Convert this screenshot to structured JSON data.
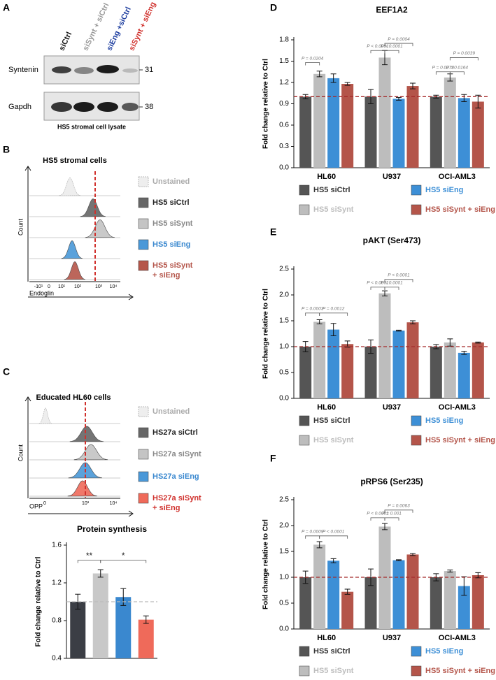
{
  "panel_labels": [
    "A",
    "B",
    "C",
    "D",
    "E",
    "F"
  ],
  "panel_a": {
    "lanes": [
      "siCtrl",
      "siSynt + siCtrl",
      "siEng +siCtrl",
      "siSynt + siEng"
    ],
    "blots": [
      {
        "label": "Syntenin",
        "size": "31"
      },
      {
        "label": "Gapdh",
        "size": "38"
      }
    ],
    "caption": "HS5 stromal cell lysate"
  },
  "panel_b": {
    "title": "HS5 stromal cells",
    "legend": [
      [
        "Unstained"
      ],
      [
        "HS5 siCtrl"
      ],
      [
        "HS5 siSynt"
      ],
      [
        "HS5 siEng"
      ],
      [
        "HS5 siSynt",
        "+ siEng"
      ]
    ],
    "ylabel": "Count",
    "xlabel": "Endoglin",
    "xticks": [
      "-10¹",
      "0",
      "10¹",
      "10²",
      "10³",
      "10⁴"
    ]
  },
  "panel_c": {
    "title": "Educated HL60 cells",
    "legend": [
      [
        "Unstained"
      ],
      [
        "HS27a siCtrl"
      ],
      [
        "HS27a siSynt"
      ],
      [
        "HS27a siEng"
      ],
      [
        "HS27a siSynt",
        "+ siEng"
      ]
    ],
    "ylabel": "Count",
    "xlabel": "OPP",
    "xticks": [
      "0",
      "10³",
      "10⁴"
    ]
  },
  "chart_data": [
    {
      "type": "bar",
      "title": "Protein synthesis",
      "ylabel": "Fold change relative to Ctrl",
      "ylim": [
        0.4,
        1.6
      ],
      "yticks": [
        0.4,
        0.8,
        1.2,
        1.6
      ],
      "values": [
        1.0,
        1.3,
        1.05,
        0.81
      ],
      "errors": [
        0.08,
        0.04,
        0.09,
        0.04
      ],
      "colors": [
        "#3b3e45",
        "#c8c8c8",
        "#3a88cf",
        "#ef6a5a"
      ],
      "refline": 1.0,
      "refline_color": "#bbbbbb",
      "annotations": [
        "**",
        "*"
      ]
    },
    {
      "type": "bar",
      "title": "EEF1A2",
      "ylabel": "Fold change relative to Ctrl",
      "ylim": [
        0,
        1.8
      ],
      "yticks": [
        {
          "value": 0,
          "label": "0.0"
        },
        0.3,
        0.6,
        0.9,
        1.2,
        1.5,
        1.8
      ],
      "categories": [
        "HL60",
        "U937",
        "OCI-AML3"
      ],
      "series": [
        {
          "name": "HS5 siCtrl",
          "color": "#555555",
          "values": [
            1.0,
            1.0,
            1.0
          ],
          "errors": [
            0.03,
            0.1,
            0.02
          ]
        },
        {
          "name": "HS5 siSynt",
          "color": "#bdbdbd",
          "values": [
            1.32,
            1.55,
            1.27
          ],
          "errors": [
            0.04,
            0.1,
            0.05
          ]
        },
        {
          "name": "HS5 siEng",
          "color": "#3d8fd6",
          "values": [
            1.26,
            0.97,
            0.98
          ],
          "errors": [
            0.06,
            0.02,
            0.05
          ]
        },
        {
          "name": "HS5 siSynt + siEng",
          "color": "#b4554a",
          "values": [
            1.18,
            1.15,
            0.93
          ],
          "errors": [
            0.02,
            0.04,
            0.09
          ]
        }
      ],
      "refline": 1.0,
      "refline_color": "#a52a2a",
      "annotations": [
        "P = 0.0204",
        "P < 0.0001",
        "P < 0.0001",
        "P = 0.0004",
        "P = 0.0278",
        "P = 0.0164",
        "P = 0.0039"
      ]
    },
    {
      "type": "bar",
      "title": "pAKT (Ser473)",
      "ylabel": "Fold change relative to Ctrl",
      "ylim": [
        0,
        2.5
      ],
      "yticks": [
        {
          "value": 0,
          "label": "0.0"
        },
        0.5,
        {
          "value": 1,
          "label": "1.0"
        },
        1.5,
        {
          "value": 2,
          "label": "2.0"
        },
        2.5
      ],
      "categories": [
        "HL60",
        "U937",
        "OCI-AML3"
      ],
      "series": [
        {
          "name": "HS5 siCtrl",
          "color": "#555555",
          "values": [
            1.0,
            1.0,
            1.0
          ],
          "errors": [
            0.1,
            0.13,
            0.04
          ]
        },
        {
          "name": "HS5 siSynt",
          "color": "#bdbdbd",
          "values": [
            1.48,
            2.03,
            1.08
          ],
          "errors": [
            0.04,
            0.05,
            0.07
          ]
        },
        {
          "name": "HS5 siEng",
          "color": "#3d8fd6",
          "values": [
            1.33,
            1.31,
            0.88
          ],
          "errors": [
            0.12,
            0.01,
            0.03
          ]
        },
        {
          "name": "HS5 siSynt + siEng",
          "color": "#b4554a",
          "values": [
            1.05,
            1.47,
            1.08
          ],
          "errors": [
            0.06,
            0.03,
            0.01
          ]
        }
      ],
      "refline": 1.0,
      "refline_color": "#a52a2a",
      "annotations": [
        "P = 0.0003",
        "P = 0.0012",
        "P < 0.0001",
        "P < 0.0001",
        "P < 0.0001"
      ]
    },
    {
      "type": "bar",
      "title": "pRPS6 (Ser235)",
      "ylabel": "Fold change relative to Ctrl",
      "ylim": [
        0,
        2.5
      ],
      "yticks": [
        {
          "value": 0,
          "label": "0.0"
        },
        0.5,
        {
          "value": 1,
          "label": "1.0"
        },
        1.5,
        {
          "value": 2,
          "label": "2.0"
        },
        2.5
      ],
      "categories": [
        "HL60",
        "U937",
        "OCI-AML3"
      ],
      "series": [
        {
          "name": "HS5 siCtrl",
          "color": "#555555",
          "values": [
            1.0,
            1.0,
            1.0
          ],
          "errors": [
            0.12,
            0.16,
            0.07
          ]
        },
        {
          "name": "HS5 siSynt",
          "color": "#bdbdbd",
          "values": [
            1.63,
            1.98,
            1.12
          ],
          "errors": [
            0.06,
            0.06,
            0.02
          ]
        },
        {
          "name": "HS5 siEng",
          "color": "#3d8fd6",
          "values": [
            1.32,
            1.33,
            0.83
          ],
          "errors": [
            0.04,
            0.01,
            0.18
          ]
        },
        {
          "name": "HS5 siSynt + siEng",
          "color": "#b4554a",
          "values": [
            0.72,
            1.44,
            1.04
          ],
          "errors": [
            0.05,
            0.02,
            0.05
          ]
        }
      ],
      "refline": 1.0,
      "refline_color": "#a52a2a",
      "annotations": [
        "P = 0.0009",
        "P < 0.0001",
        "P < 0.0001",
        "P = 0.001",
        "P = 0.0063"
      ]
    }
  ]
}
